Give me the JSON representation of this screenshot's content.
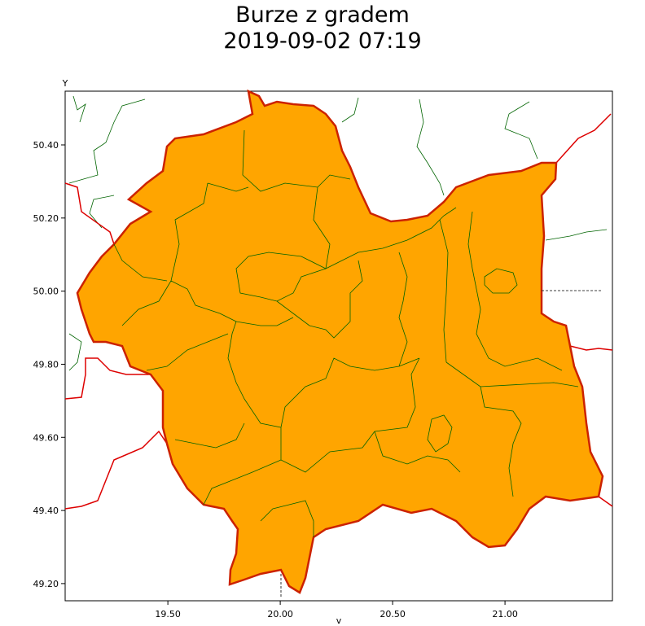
{
  "title": "Burze z gradem",
  "subtitle": "2019-09-02 07:19",
  "map": {
    "y_axis_label": "Y",
    "x_axis_label": "v",
    "xlim": [
      19.043,
      21.478
    ],
    "ylim": [
      49.153,
      50.547
    ],
    "xticks": [
      {
        "value": 19.5,
        "label": "19.50"
      },
      {
        "value": 20.0,
        "label": "20.00"
      },
      {
        "value": 20.5,
        "label": "20.50"
      },
      {
        "value": 21.0,
        "label": "21.00"
      }
    ],
    "yticks": [
      {
        "value": 50.4,
        "label": "50.40"
      },
      {
        "value": 50.2,
        "label": "50.20"
      },
      {
        "value": 50.0,
        "label": "50.00"
      },
      {
        "value": 49.8,
        "label": "49.80"
      },
      {
        "value": 49.6,
        "label": "49.60"
      },
      {
        "value": 49.4,
        "label": "49.40"
      },
      {
        "value": 49.2,
        "label": "49.20"
      }
    ],
    "region_color": "#ffa500"
  }
}
